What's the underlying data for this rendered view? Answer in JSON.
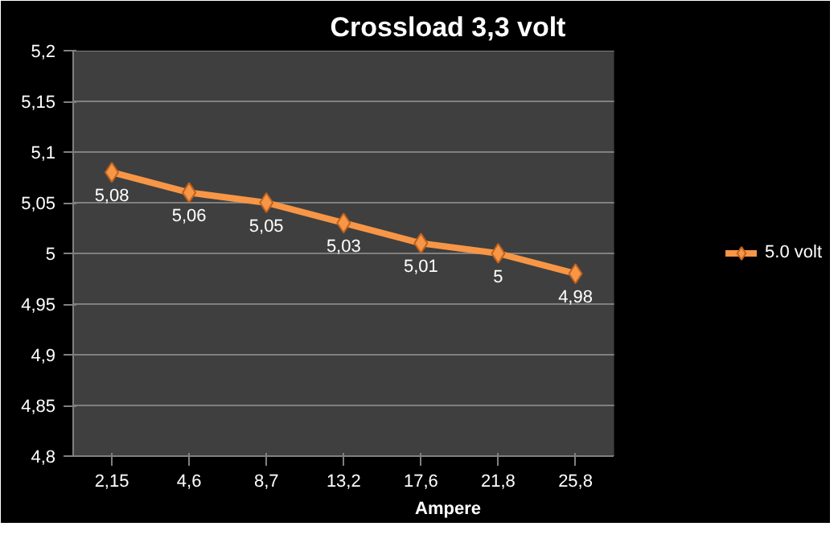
{
  "chart_data": {
    "type": "line",
    "title": "Crossload 3,3 volt",
    "xlabel": "Ampere",
    "categories": [
      "2,15",
      "4,6",
      "8,7",
      "13,2",
      "17,6",
      "21,8",
      "25,8"
    ],
    "series": [
      {
        "name": "5.0 volt",
        "color": "#f79646",
        "values": [
          5.08,
          5.06,
          5.05,
          5.03,
          5.01,
          5.0,
          4.98
        ],
        "value_labels": [
          "5,08",
          "5,06",
          "5,05",
          "5,03",
          "5,01",
          "5",
          "4,98"
        ]
      }
    ],
    "ylim": [
      4.8,
      5.2
    ],
    "yticks": [
      {
        "value": 4.8,
        "label": "4,8"
      },
      {
        "value": 4.85,
        "label": "4,85"
      },
      {
        "value": 4.9,
        "label": "4,9"
      },
      {
        "value": 4.95,
        "label": "4,95"
      },
      {
        "value": 5.0,
        "label": "5"
      },
      {
        "value": 5.05,
        "label": "5,05"
      },
      {
        "value": 5.1,
        "label": "5,1"
      },
      {
        "value": 5.15,
        "label": "5,15"
      },
      {
        "value": 5.2,
        "label": "5,2"
      }
    ],
    "grid": "y",
    "legend": "right",
    "marker": "diamond",
    "line_style": "solid"
  }
}
